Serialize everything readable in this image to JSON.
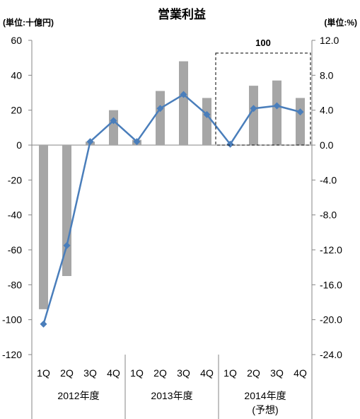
{
  "chart_data": {
    "type": "bar+line",
    "title": "営業利益",
    "left_unit": "(単位:十億円)",
    "right_unit": "(単位:%)",
    "categories": [
      "1Q",
      "2Q",
      "3Q",
      "4Q",
      "1Q",
      "2Q",
      "3Q",
      "4Q",
      "1Q",
      "2Q",
      "3Q",
      "4Q"
    ],
    "groups": [
      {
        "label": "2012年度",
        "sub": ""
      },
      {
        "label": "2013年度",
        "sub": ""
      },
      {
        "label": "2014年度",
        "sub": "(予想)"
      }
    ],
    "left_axis": {
      "min": -120,
      "max": 60,
      "step": 20,
      "ticks": [
        "60",
        "40",
        "20",
        "0",
        "-20",
        "-40",
        "-60",
        "-80",
        "-100",
        "-120"
      ]
    },
    "right_axis": {
      "min": -24,
      "max": 12,
      "step": 4,
      "ticks": [
        "12.0",
        "8.0",
        "4.0",
        "0.0",
        "-4.0",
        "-8.0",
        "-12.0",
        "-16.0",
        "-20.0",
        "-24.0"
      ]
    },
    "bar_series": {
      "values": [
        -94,
        -75,
        2,
        20,
        3,
        31,
        48,
        27,
        0,
        34,
        37,
        27
      ],
      "color": "#a6a6a6"
    },
    "line_series": {
      "values": [
        -20.5,
        -11.5,
        0.4,
        2.8,
        0.4,
        4.2,
        5.8,
        3.5,
        0.1,
        4.2,
        4.5,
        3.8
      ],
      "color": "#4a7ebb"
    },
    "annotation": {
      "text": "100"
    },
    "grid": "none",
    "legend": "none"
  }
}
